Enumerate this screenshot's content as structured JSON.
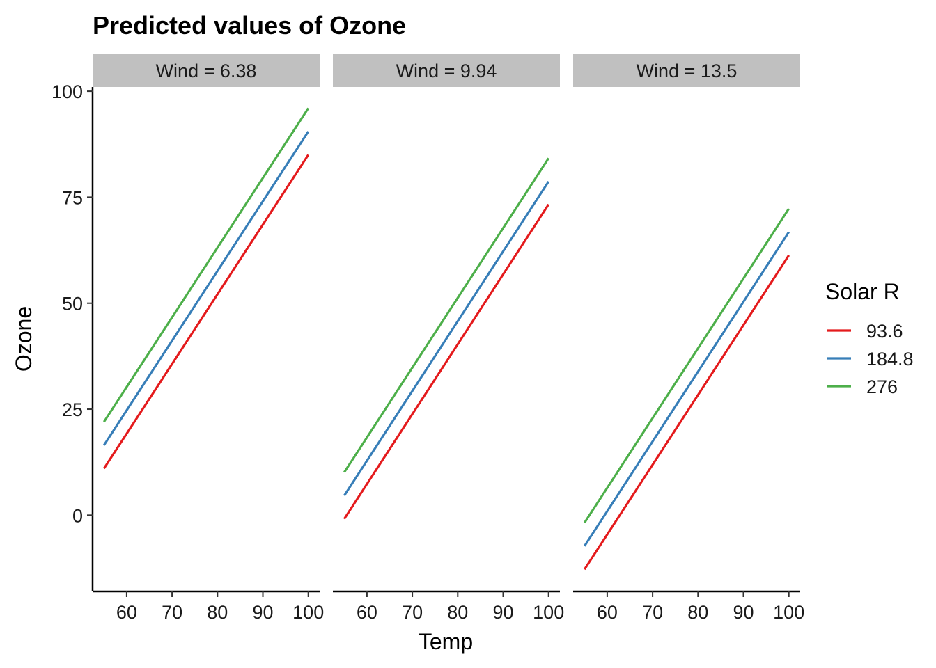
{
  "chart_data": {
    "type": "line",
    "title": "Predicted values of Ozone",
    "xlabel": "Temp",
    "ylabel": "Ozone",
    "xlim": [
      52.5,
      102.5
    ],
    "ylim": [
      -18,
      101
    ],
    "x_ticks": [
      60,
      70,
      80,
      90,
      100
    ],
    "y_ticks": [
      0,
      25,
      50,
      75,
      100
    ],
    "grid": false,
    "legend": {
      "title": "Solar R",
      "placement": "right",
      "entries": [
        "93.6",
        "184.8",
        "276"
      ]
    },
    "colors": {
      "93.6": "#E41A1C",
      "184.8": "#377EB8",
      "276": "#4DAF4A"
    },
    "strip_fill": "#C0C0C0",
    "panels": [
      {
        "label": "Wind = 6.38",
        "series": [
          {
            "name": "93.6",
            "x": [
              55,
              100
            ],
            "y": [
              11.0,
              85.0
            ]
          },
          {
            "name": "184.8",
            "x": [
              55,
              100
            ],
            "y": [
              16.5,
              90.5
            ]
          },
          {
            "name": "276",
            "x": [
              55,
              100
            ],
            "y": [
              22.0,
              96.0
            ]
          }
        ]
      },
      {
        "label": "Wind = 9.94",
        "series": [
          {
            "name": "93.6",
            "x": [
              55,
              100
            ],
            "y": [
              -0.9,
              73.3
            ]
          },
          {
            "name": "184.8",
            "x": [
              55,
              100
            ],
            "y": [
              4.6,
              78.7
            ]
          },
          {
            "name": "276",
            "x": [
              55,
              100
            ],
            "y": [
              10.1,
              84.2
            ]
          }
        ]
      },
      {
        "label": "Wind = 13.5",
        "series": [
          {
            "name": "93.6",
            "x": [
              55,
              100
            ],
            "y": [
              -12.8,
              61.3
            ]
          },
          {
            "name": "184.8",
            "x": [
              55,
              100
            ],
            "y": [
              -7.3,
              66.8
            ]
          },
          {
            "name": "276",
            "x": [
              55,
              100
            ],
            "y": [
              -1.8,
              72.3
            ]
          }
        ]
      }
    ]
  }
}
